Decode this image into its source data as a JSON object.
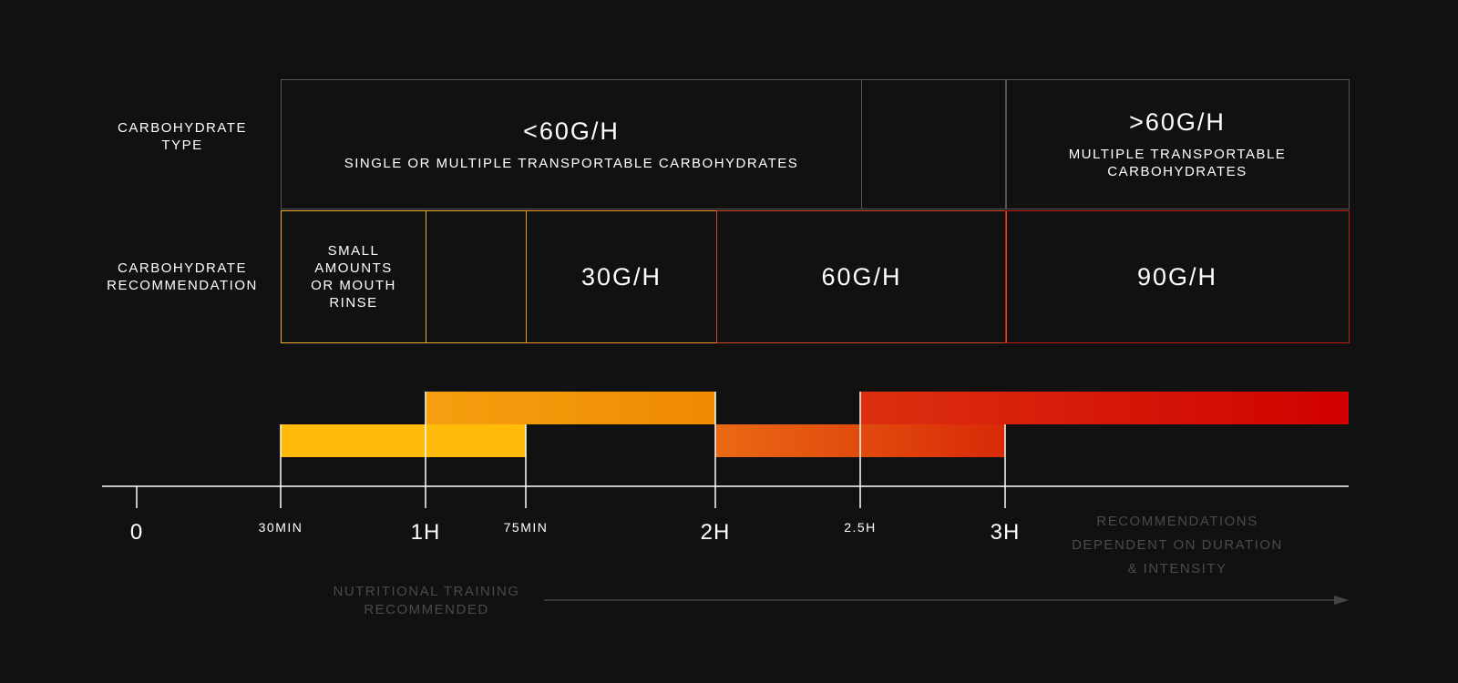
{
  "row_labels": {
    "type_line1": "CARBOHYDRATE",
    "type_line2": "TYPE",
    "rec_line1": "CARBOHYDRATE",
    "rec_line2": "RECOMMENDATION"
  },
  "type_row": {
    "low": {
      "value": "<60G/H",
      "sub": "SINGLE OR MULTIPLE TRANSPORTABLE CARBOHYDRATES"
    },
    "high": {
      "value": ">60G/H",
      "sub_line1": "MULTIPLE TRANSPORTABLE",
      "sub_line2": "CARBOHYDRATES"
    }
  },
  "rec_row": {
    "small": {
      "line1": "SMALL",
      "line2": "AMOUNTS",
      "line3": "OR MOUTH",
      "line4": "RINSE"
    },
    "r30": "30G/H",
    "r60": "60G/H",
    "r90": "90G/H"
  },
  "axis": {
    "ticks": [
      {
        "value": 0,
        "label": "0",
        "size": "big"
      },
      {
        "value": 30,
        "label": "30MIN",
        "size": "small"
      },
      {
        "value": 60,
        "label": "1H",
        "size": "big"
      },
      {
        "value": 75,
        "label": "75MIN",
        "size": "small"
      },
      {
        "value": 120,
        "label": "2H",
        "size": "big"
      },
      {
        "value": 150,
        "label": "2.5H",
        "size": "small"
      },
      {
        "value": 180,
        "label": "3H",
        "size": "big"
      }
    ]
  },
  "notes": {
    "duration_line1": "RECOMMENDATIONS",
    "duration_line2": "DEPENDENT ON DURATION",
    "duration_line3": "& INTENSITY",
    "training_line1": "NUTRITIONAL TRAINING",
    "training_line2": "RECOMMENDED"
  },
  "colors": {
    "background": "#111111",
    "grid_grey": "#555555",
    "yellow": "#ffba0a",
    "orange": "#f39410",
    "red": "#d00000",
    "muted_text": "#4a4a4a"
  }
}
